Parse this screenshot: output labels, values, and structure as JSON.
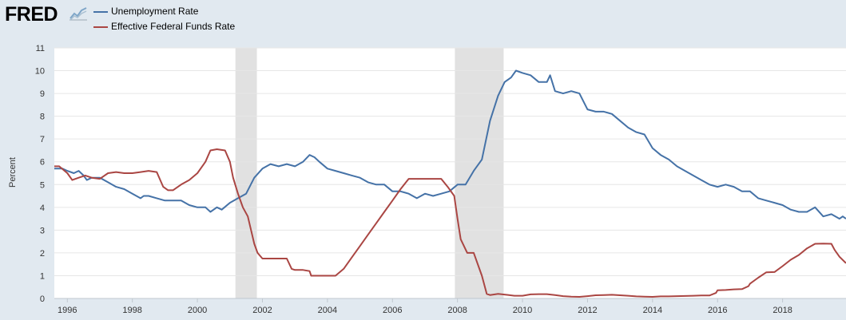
{
  "brand": {
    "logo_text": "FRED"
  },
  "chart_data": {
    "type": "line",
    "ylabel": "Percent",
    "xlabel": "",
    "title": "",
    "ylim": [
      0,
      11
    ],
    "xlim": [
      1995.6,
      2019.95
    ],
    "yticks": [
      0,
      1,
      2,
      3,
      4,
      5,
      6,
      7,
      8,
      9,
      10,
      11
    ],
    "xticks": [
      {
        "value": 1996,
        "label": "1996"
      },
      {
        "value": 1998,
        "label": "1998"
      },
      {
        "value": 2000,
        "label": "2000"
      },
      {
        "value": 2002,
        "label": "2002"
      },
      {
        "value": 2004,
        "label": "2004"
      },
      {
        "value": 2006,
        "label": "2006"
      },
      {
        "value": 2008,
        "label": "2008"
      },
      {
        "value": 2010,
        "label": "2010"
      },
      {
        "value": 2012,
        "label": "2012"
      },
      {
        "value": 2014,
        "label": "2014"
      },
      {
        "value": 2016,
        "label": "2016"
      },
      {
        "value": 2018,
        "label": "2018"
      }
    ],
    "recessions": [
      {
        "start": 2001.17,
        "end": 2001.83
      },
      {
        "start": 2007.92,
        "end": 2009.42
      }
    ],
    "legend_position": "top-left",
    "grid": true,
    "series": [
      {
        "name": "Unemployment Rate",
        "color": "#4572a7",
        "points": [
          [
            1995.6,
            5.7
          ],
          [
            1995.85,
            5.7
          ],
          [
            1996.0,
            5.6
          ],
          [
            1996.2,
            5.5
          ],
          [
            1996.35,
            5.6
          ],
          [
            1996.5,
            5.4
          ],
          [
            1996.6,
            5.2
          ],
          [
            1996.75,
            5.3
          ],
          [
            1997.0,
            5.3
          ],
          [
            1997.25,
            5.1
          ],
          [
            1997.5,
            4.9
          ],
          [
            1997.75,
            4.8
          ],
          [
            1998.0,
            4.6
          ],
          [
            1998.25,
            4.4
          ],
          [
            1998.35,
            4.5
          ],
          [
            1998.5,
            4.5
          ],
          [
            1998.75,
            4.4
          ],
          [
            1999.0,
            4.3
          ],
          [
            1999.25,
            4.3
          ],
          [
            1999.5,
            4.3
          ],
          [
            1999.75,
            4.1
          ],
          [
            2000.0,
            4.0
          ],
          [
            2000.25,
            4.0
          ],
          [
            2000.4,
            3.8
          ],
          [
            2000.6,
            4.0
          ],
          [
            2000.75,
            3.9
          ],
          [
            2001.0,
            4.2
          ],
          [
            2001.25,
            4.4
          ],
          [
            2001.5,
            4.6
          ],
          [
            2001.75,
            5.3
          ],
          [
            2002.0,
            5.7
          ],
          [
            2002.25,
            5.9
          ],
          [
            2002.5,
            5.8
          ],
          [
            2002.75,
            5.9
          ],
          [
            2003.0,
            5.8
          ],
          [
            2003.25,
            6.0
          ],
          [
            2003.45,
            6.3
          ],
          [
            2003.6,
            6.2
          ],
          [
            2003.75,
            6.0
          ],
          [
            2004.0,
            5.7
          ],
          [
            2004.25,
            5.6
          ],
          [
            2004.5,
            5.5
          ],
          [
            2004.75,
            5.4
          ],
          [
            2005.0,
            5.3
          ],
          [
            2005.25,
            5.1
          ],
          [
            2005.5,
            5.0
          ],
          [
            2005.75,
            5.0
          ],
          [
            2006.0,
            4.7
          ],
          [
            2006.25,
            4.7
          ],
          [
            2006.5,
            4.6
          ],
          [
            2006.75,
            4.4
          ],
          [
            2007.0,
            4.6
          ],
          [
            2007.25,
            4.5
          ],
          [
            2007.5,
            4.6
          ],
          [
            2007.75,
            4.7
          ],
          [
            2008.0,
            5.0
          ],
          [
            2008.25,
            5.0
          ],
          [
            2008.5,
            5.6
          ],
          [
            2008.75,
            6.1
          ],
          [
            2009.0,
            7.8
          ],
          [
            2009.25,
            8.9
          ],
          [
            2009.45,
            9.5
          ],
          [
            2009.65,
            9.7
          ],
          [
            2009.8,
            10.0
          ],
          [
            2010.0,
            9.9
          ],
          [
            2010.25,
            9.8
          ],
          [
            2010.5,
            9.5
          ],
          [
            2010.75,
            9.5
          ],
          [
            2010.85,
            9.8
          ],
          [
            2011.0,
            9.1
          ],
          [
            2011.25,
            9.0
          ],
          [
            2011.5,
            9.1
          ],
          [
            2011.75,
            9.0
          ],
          [
            2012.0,
            8.3
          ],
          [
            2012.25,
            8.2
          ],
          [
            2012.5,
            8.2
          ],
          [
            2012.75,
            8.1
          ],
          [
            2013.0,
            7.8
          ],
          [
            2013.25,
            7.5
          ],
          [
            2013.5,
            7.3
          ],
          [
            2013.75,
            7.2
          ],
          [
            2014.0,
            6.6
          ],
          [
            2014.25,
            6.3
          ],
          [
            2014.5,
            6.1
          ],
          [
            2014.75,
            5.8
          ],
          [
            2015.0,
            5.6
          ],
          [
            2015.25,
            5.4
          ],
          [
            2015.5,
            5.2
          ],
          [
            2015.75,
            5.0
          ],
          [
            2016.0,
            4.9
          ],
          [
            2016.25,
            5.0
          ],
          [
            2016.5,
            4.9
          ],
          [
            2016.75,
            4.7
          ],
          [
            2017.0,
            4.7
          ],
          [
            2017.25,
            4.4
          ],
          [
            2017.5,
            4.3
          ],
          [
            2017.75,
            4.2
          ],
          [
            2018.0,
            4.1
          ],
          [
            2018.25,
            3.9
          ],
          [
            2018.5,
            3.8
          ],
          [
            2018.75,
            3.8
          ],
          [
            2019.0,
            4.0
          ],
          [
            2019.25,
            3.6
          ],
          [
            2019.5,
            3.7
          ],
          [
            2019.75,
            3.5
          ],
          [
            2019.85,
            3.6
          ],
          [
            2019.95,
            3.5
          ]
        ]
      },
      {
        "name": "Effective Federal Funds Rate",
        "color": "#aa4643",
        "points": [
          [
            1995.6,
            5.8
          ],
          [
            1995.75,
            5.8
          ],
          [
            1996.0,
            5.5
          ],
          [
            1996.15,
            5.2
          ],
          [
            1996.35,
            5.3
          ],
          [
            1996.55,
            5.4
          ],
          [
            1996.75,
            5.3
          ],
          [
            1997.0,
            5.25
          ],
          [
            1997.25,
            5.5
          ],
          [
            1997.5,
            5.55
          ],
          [
            1997.75,
            5.5
          ],
          [
            1998.0,
            5.5
          ],
          [
            1998.25,
            5.55
          ],
          [
            1998.5,
            5.6
          ],
          [
            1998.75,
            5.55
          ],
          [
            1998.95,
            4.9
          ],
          [
            1999.1,
            4.75
          ],
          [
            1999.25,
            4.75
          ],
          [
            1999.5,
            5.0
          ],
          [
            1999.75,
            5.2
          ],
          [
            2000.0,
            5.5
          ],
          [
            2000.25,
            6.0
          ],
          [
            2000.4,
            6.5
          ],
          [
            2000.6,
            6.55
          ],
          [
            2000.85,
            6.5
          ],
          [
            2001.0,
            6.0
          ],
          [
            2001.1,
            5.3
          ],
          [
            2001.25,
            4.6
          ],
          [
            2001.4,
            4.0
          ],
          [
            2001.55,
            3.6
          ],
          [
            2001.75,
            2.4
          ],
          [
            2001.85,
            2.0
          ],
          [
            2002.0,
            1.75
          ],
          [
            2002.25,
            1.75
          ],
          [
            2002.5,
            1.75
          ],
          [
            2002.75,
            1.75
          ],
          [
            2002.9,
            1.3
          ],
          [
            2003.0,
            1.25
          ],
          [
            2003.25,
            1.25
          ],
          [
            2003.45,
            1.2
          ],
          [
            2003.5,
            1.0
          ],
          [
            2003.75,
            1.0
          ],
          [
            2004.0,
            1.0
          ],
          [
            2004.25,
            1.0
          ],
          [
            2004.5,
            1.3
          ],
          [
            2004.75,
            1.8
          ],
          [
            2005.0,
            2.3
          ],
          [
            2005.25,
            2.8
          ],
          [
            2005.5,
            3.3
          ],
          [
            2005.75,
            3.8
          ],
          [
            2006.0,
            4.3
          ],
          [
            2006.25,
            4.8
          ],
          [
            2006.5,
            5.25
          ],
          [
            2006.75,
            5.25
          ],
          [
            2007.0,
            5.25
          ],
          [
            2007.25,
            5.25
          ],
          [
            2007.5,
            5.25
          ],
          [
            2007.7,
            4.9
          ],
          [
            2007.9,
            4.5
          ],
          [
            2008.0,
            3.5
          ],
          [
            2008.1,
            2.6
          ],
          [
            2008.3,
            2.0
          ],
          [
            2008.5,
            2.0
          ],
          [
            2008.75,
            1.0
          ],
          [
            2008.9,
            0.2
          ],
          [
            2009.0,
            0.15
          ],
          [
            2009.25,
            0.2
          ],
          [
            2009.5,
            0.16
          ],
          [
            2009.75,
            0.12
          ],
          [
            2010.0,
            0.12
          ],
          [
            2010.25,
            0.18
          ],
          [
            2010.5,
            0.19
          ],
          [
            2010.75,
            0.19
          ],
          [
            2011.0,
            0.15
          ],
          [
            2011.25,
            0.1
          ],
          [
            2011.5,
            0.08
          ],
          [
            2011.75,
            0.07
          ],
          [
            2012.0,
            0.1
          ],
          [
            2012.25,
            0.14
          ],
          [
            2012.5,
            0.15
          ],
          [
            2012.75,
            0.16
          ],
          [
            2013.0,
            0.14
          ],
          [
            2013.25,
            0.12
          ],
          [
            2013.5,
            0.09
          ],
          [
            2013.75,
            0.08
          ],
          [
            2014.0,
            0.07
          ],
          [
            2014.25,
            0.09
          ],
          [
            2014.5,
            0.09
          ],
          [
            2014.75,
            0.1
          ],
          [
            2015.0,
            0.11
          ],
          [
            2015.25,
            0.12
          ],
          [
            2015.5,
            0.13
          ],
          [
            2015.75,
            0.13
          ],
          [
            2015.95,
            0.24
          ],
          [
            2016.0,
            0.36
          ],
          [
            2016.25,
            0.37
          ],
          [
            2016.5,
            0.4
          ],
          [
            2016.75,
            0.41
          ],
          [
            2016.95,
            0.54
          ],
          [
            2017.0,
            0.65
          ],
          [
            2017.25,
            0.91
          ],
          [
            2017.5,
            1.15
          ],
          [
            2017.75,
            1.16
          ],
          [
            2018.0,
            1.42
          ],
          [
            2018.25,
            1.7
          ],
          [
            2018.5,
            1.91
          ],
          [
            2018.75,
            2.2
          ],
          [
            2019.0,
            2.4
          ],
          [
            2019.25,
            2.41
          ],
          [
            2019.5,
            2.4
          ],
          [
            2019.6,
            2.13
          ],
          [
            2019.75,
            1.83
          ],
          [
            2019.95,
            1.55
          ]
        ]
      }
    ]
  }
}
